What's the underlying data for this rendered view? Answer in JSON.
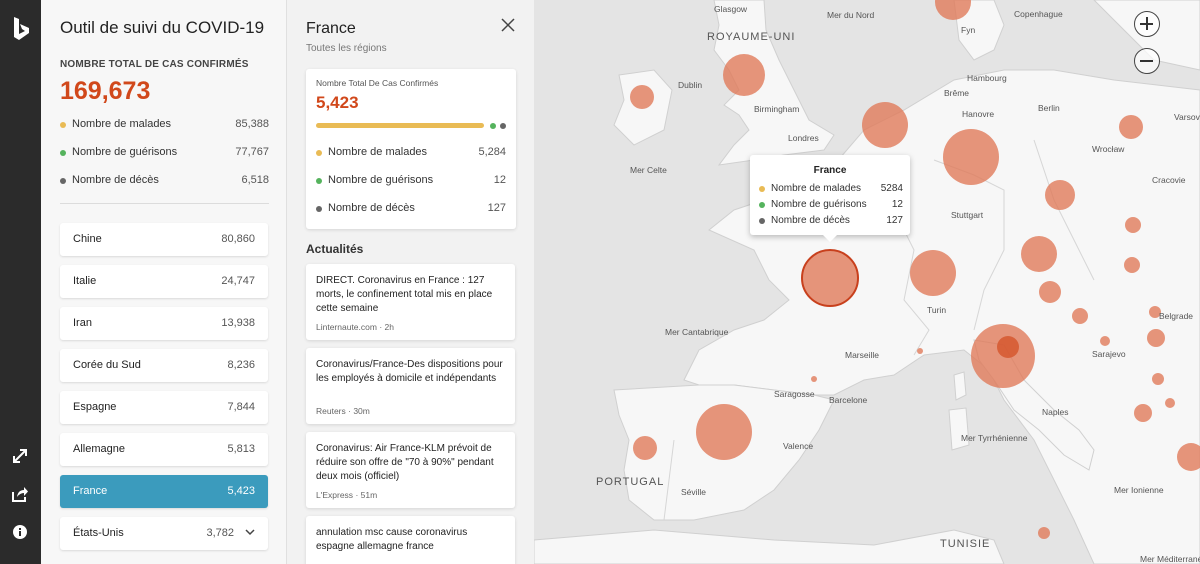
{
  "app": {
    "title": "Outil de suivi du COVID-19"
  },
  "colors": {
    "accent": "#d1481b",
    "sick": "#e9bb55",
    "recovered": "#55b35d",
    "deaths": "#666666",
    "selected": "#3b9bbd",
    "bubble": "#e07a5a"
  },
  "rail": {
    "icons": [
      "bing-logo-icon",
      "expand-icon",
      "share-icon",
      "info-icon"
    ]
  },
  "global": {
    "total_label": "NOMBRE TOTAL DE CAS CONFIRMÉS",
    "total_value": "169,673",
    "stats": [
      {
        "label": "Nombre de malades",
        "value": "85,388"
      },
      {
        "label": "Nombre de guérisons",
        "value": "77,767"
      },
      {
        "label": "Nombre de décès",
        "value": "6,518"
      }
    ]
  },
  "countries": [
    {
      "name": "Chine",
      "count": "80,860"
    },
    {
      "name": "Italie",
      "count": "24,747"
    },
    {
      "name": "Iran",
      "count": "13,938"
    },
    {
      "name": "Corée du Sud",
      "count": "8,236"
    },
    {
      "name": "Espagne",
      "count": "7,844"
    },
    {
      "name": "Allemagne",
      "count": "5,813"
    },
    {
      "name": "France",
      "count": "5,423",
      "selected": true
    },
    {
      "name": "États-Unis",
      "count": "3,782"
    }
  ],
  "detail": {
    "title": "France",
    "subtitle": "Toutes les régions",
    "card_label": "Nombre Total De Cas Confirmés",
    "card_value": "5,423",
    "sick_fraction": 0.974,
    "stats": [
      {
        "label": "Nombre de malades",
        "value": "5,284"
      },
      {
        "label": "Nombre de guérisons",
        "value": "12"
      },
      {
        "label": "Nombre de décès",
        "value": "127"
      }
    ],
    "news_heading": "Actualités",
    "news": [
      {
        "headline": "DIRECT. Coronavirus en France : 127 morts, le confinement total mis en place cette semaine",
        "source": "Linternaute.com",
        "time": "· 2h"
      },
      {
        "headline": "Coronavirus/France-Des dispositions pour les employés à domicile et indépendants",
        "source": "Reuters",
        "time": "· 30m"
      },
      {
        "headline": "Coronavirus: Air France-KLM prévoit de réduire son offre de \"70 à 90%\" pendant deux mois (officiel)",
        "source": "L'Express",
        "time": "· 51m"
      },
      {
        "headline": "annulation msc cause coronavirus espagne allemagne france",
        "source": "",
        "time": ""
      }
    ]
  },
  "tooltip": {
    "title": "France",
    "rows": [
      {
        "label": "Nombre de malades",
        "value": "5284"
      },
      {
        "label": "Nombre de guérisons",
        "value": "12"
      },
      {
        "label": "Nombre de décès",
        "value": "127"
      }
    ]
  },
  "map": {
    "labels": {
      "glasgow": "Glasgow",
      "mer_du_nord": "Mer du Nord",
      "copenhague": "Copenhague",
      "royaume_uni": "ROYAUME-UNI",
      "fyn": "Fyn",
      "dublin": "Dublin",
      "hambourg": "Hambourg",
      "breme": "Brême",
      "birmingham": "Birmingham",
      "berlin": "Berlin",
      "hanovre": "Hanovre",
      "varsovie": "Varsov",
      "londres": "Londres",
      "wroclaw": "Wrocław",
      "mer_celte": "Mer Celte",
      "cracovie": "Cracovie",
      "stuttgart": "Stuttgart",
      "turin": "Turin",
      "mer_cantabrique": "Mer Cantabrique",
      "marseille": "Marseille",
      "belgrade": "Belgrade",
      "sarajevo": "Sarajevo",
      "saragosse": "Saragosse",
      "barcelone": "Barcelone",
      "naples": "Naples",
      "mer_tyrrhenienne": "Mer Tyrrhénienne",
      "valence": "Valence",
      "portugal": "PORTUGAL",
      "seville": "Séville",
      "mer_ionienne": "Mer Ionienne",
      "tunisie": "TUNISIE",
      "mer_mediterranee": "Mer Méditerranée"
    }
  }
}
